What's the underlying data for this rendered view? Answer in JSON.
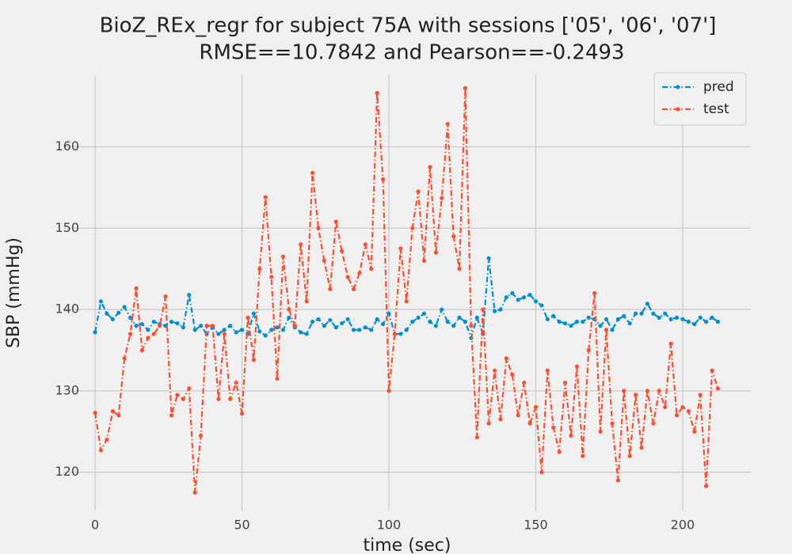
{
  "chart_data": {
    "type": "line",
    "title": "BioZ_REx_regr for subject 75A with sessions ['05', '06', '07']",
    "subtitle": "RMSE==10.7842 and Pearson==-0.2493",
    "x_label": "time (sec)",
    "y_label": "SBP (mmHg)",
    "x": [
      0,
      2,
      4,
      6,
      8,
      10,
      12,
      14,
      16,
      18,
      20,
      22,
      24,
      26,
      28,
      30,
      32,
      34,
      36,
      38,
      40,
      42,
      44,
      46,
      48,
      50,
      52,
      54,
      56,
      58,
      60,
      62,
      64,
      66,
      68,
      70,
      72,
      74,
      76,
      78,
      80,
      82,
      84,
      86,
      88,
      90,
      92,
      94,
      96,
      98,
      100,
      102,
      104,
      106,
      108,
      110,
      112,
      114,
      116,
      118,
      120,
      122,
      124,
      126,
      128,
      130,
      132,
      134,
      136,
      138,
      140,
      142,
      144,
      146,
      148,
      150,
      152,
      154,
      156,
      158,
      160,
      162,
      164,
      166,
      168,
      170,
      172,
      174,
      176,
      178,
      180,
      182,
      184,
      186,
      188,
      190,
      192,
      194,
      196,
      198,
      200,
      202,
      204,
      206,
      208,
      210,
      212
    ],
    "series": [
      {
        "name": "pred",
        "color": "#008fd5",
        "values": [
          137.2,
          141,
          139.5,
          138.8,
          139.6,
          140.3,
          139,
          138,
          138.2,
          137.5,
          138.5,
          138.2,
          138,
          138.5,
          138.3,
          137.8,
          141.8,
          137.5,
          138,
          137,
          137.8,
          137,
          137.5,
          138,
          137.2,
          137.5,
          137,
          139.5,
          137.3,
          136.8,
          137.5,
          137.8,
          137.5,
          139,
          137.8,
          137.2,
          137,
          138.5,
          138.8,
          138,
          138.7,
          137.8,
          138.3,
          138.8,
          137.5,
          137.5,
          137.8,
          137.5,
          138.8,
          138.2,
          139.5,
          137,
          137,
          137.5,
          138.5,
          139,
          139.5,
          138.5,
          138,
          140,
          138.5,
          138,
          139,
          138.5,
          136.5,
          139,
          137,
          146.3,
          139.8,
          140,
          141.5,
          142,
          141.2,
          141.5,
          141.8,
          141,
          140.5,
          138.8,
          139.2,
          138.5,
          138.3,
          138,
          138.5,
          138.5,
          139,
          138.8,
          138,
          138.8,
          137.5,
          138.8,
          139.2,
          138.3,
          139.5,
          139.5,
          140.7,
          139.5,
          139,
          139.5,
          138.8,
          139,
          138.8,
          138.5,
          138.2,
          139,
          138.5,
          139,
          138.5
        ]
      },
      {
        "name": "test",
        "color": "#fc4f30",
        "values": [
          127.3,
          122.7,
          124,
          127.5,
          127,
          134,
          137,
          142.6,
          135,
          136.5,
          137,
          138,
          141.6,
          127,
          129.5,
          129,
          130.3,
          117.5,
          124.5,
          138,
          138,
          129,
          137,
          129,
          131,
          127.2,
          139,
          133.8,
          145,
          153.8,
          144,
          131.5,
          146.5,
          140,
          138,
          148,
          141,
          156.8,
          150,
          146,
          142.5,
          150.8,
          147.2,
          144,
          142.5,
          144.5,
          148,
          145,
          166.6,
          156,
          130,
          137,
          147.5,
          141,
          150,
          154.5,
          146,
          157.5,
          147,
          153.7,
          162.8,
          149,
          145,
          167.2,
          138,
          124.3,
          140,
          126,
          132.5,
          126.5,
          134,
          132,
          127,
          131,
          126,
          128,
          120,
          132.5,
          125.5,
          122.5,
          131,
          124.5,
          133,
          122,
          135,
          142,
          125,
          137.5,
          126,
          119,
          130,
          122,
          129.5,
          123,
          130,
          126,
          130,
          128,
          135.8,
          127,
          128,
          127.5,
          125,
          129.5,
          118.3,
          132.5,
          130.3
        ]
      }
    ],
    "xlim": [
      -10.8,
      223.2
    ],
    "ylim": [
      115.3,
      168.8
    ],
    "xticks": [
      0,
      50,
      100,
      150,
      200
    ],
    "yticks": [
      120,
      130,
      140,
      150,
      160
    ],
    "grid": true,
    "legend": "upper right"
  }
}
